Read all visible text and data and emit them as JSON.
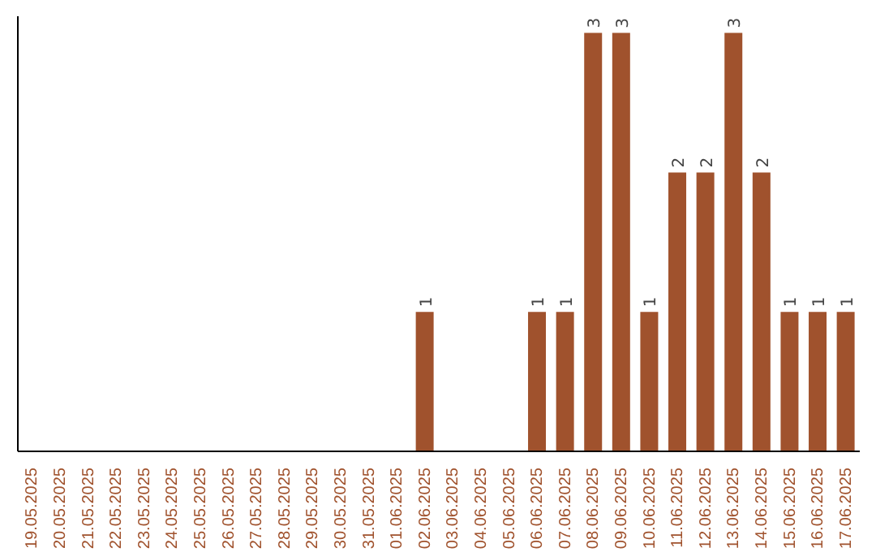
{
  "chart_data": {
    "type": "bar",
    "categories": [
      "19.05.2025",
      "20.05.2025",
      "21.05.2025",
      "22.05.2025",
      "23.05.2025",
      "24.05.2025",
      "25.05.2025",
      "26.05.2025",
      "27.05.2025",
      "28.05.2025",
      "29.05.2025",
      "30.05.2025",
      "31.05.2025",
      "01.06.2025",
      "02.06.2025",
      "03.06.2025",
      "04.06.2025",
      "05.06.2025",
      "06.06.2025",
      "07.06.2025",
      "08.06.2025",
      "09.06.2025",
      "10.06.2025",
      "11.06.2025",
      "12.06.2025",
      "13.06.2025",
      "14.06.2025",
      "15.06.2025",
      "16.06.2025",
      "17.06.2025"
    ],
    "values": [
      null,
      null,
      null,
      null,
      null,
      null,
      null,
      null,
      null,
      null,
      null,
      null,
      null,
      null,
      1,
      null,
      null,
      null,
      1,
      1,
      3,
      3,
      1,
      2,
      2,
      3,
      2,
      1,
      1,
      1
    ],
    "data_labels": true,
    "color": "#a0522d",
    "grid": false,
    "legend": false
  }
}
